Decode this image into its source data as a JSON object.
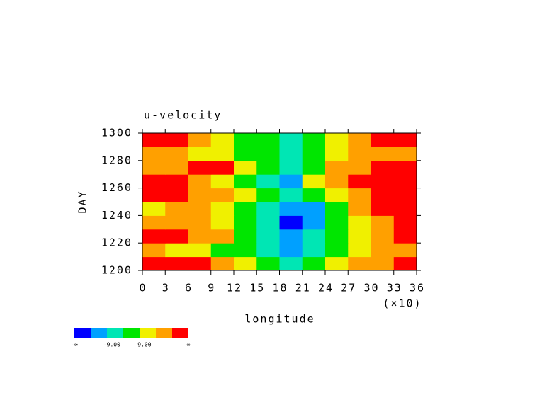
{
  "chart_data": {
    "type": "heatmap",
    "title": "u-velocity",
    "xlabel": "longitude",
    "xscale_label": "(×10)",
    "ylabel": "DAY",
    "xlim": [
      0,
      36
    ],
    "xticks": [
      0,
      3,
      6,
      9,
      12,
      15,
      18,
      21,
      24,
      27,
      30,
      33,
      36
    ],
    "ylim": [
      1200,
      1300
    ],
    "yticks": [
      1200,
      1220,
      1240,
      1260,
      1280,
      1300
    ],
    "levels": [
      -18,
      -9,
      0,
      9,
      18,
      27
    ],
    "colors": [
      "#0000ff",
      "#00a0ff",
      "#00e6b4",
      "#00e600",
      "#f0f000",
      "#ffa000",
      "#ff0000"
    ],
    "colorbar_labels": [
      "-∞",
      "-9.00",
      "9.00",
      "∞"
    ],
    "values": [
      [
        30,
        28,
        30,
        22,
        12,
        5,
        -5,
        2,
        10,
        20,
        25,
        28
      ],
      [
        20,
        15,
        12,
        8,
        3,
        -3,
        -10,
        -4,
        5,
        14,
        20,
        24
      ],
      [
        30,
        28,
        25,
        18,
        8,
        -2,
        -12,
        -8,
        4,
        12,
        18,
        30
      ],
      [
        22,
        25,
        20,
        14,
        5,
        -5,
        -20,
        -15,
        2,
        10,
        22,
        28
      ],
      [
        15,
        20,
        22,
        12,
        3,
        -4,
        -14,
        -10,
        8,
        20,
        28,
        30
      ],
      [
        28,
        30,
        25,
        20,
        10,
        0,
        -8,
        5,
        15,
        25,
        30,
        30
      ],
      [
        30,
        28,
        22,
        15,
        6,
        -3,
        -10,
        10,
        20,
        28,
        30,
        30
      ],
      [
        20,
        24,
        28,
        30,
        12,
        2,
        -6,
        8,
        18,
        22,
        28,
        30
      ],
      [
        25,
        18,
        14,
        10,
        5,
        0,
        -4,
        4,
        12,
        20,
        25,
        22
      ],
      [
        28,
        30,
        24,
        15,
        6,
        2,
        -2,
        6,
        14,
        22,
        28,
        30
      ]
    ]
  }
}
